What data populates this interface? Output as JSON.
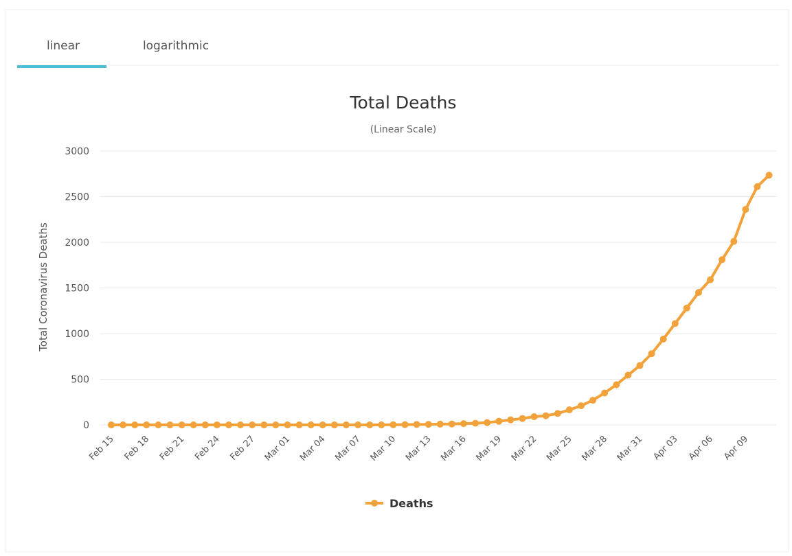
{
  "tabs": [
    "linear",
    "logarithmic"
  ],
  "chart_data": {
    "type": "line",
    "title": "Total Deaths",
    "subtitle": "(Linear Scale)",
    "y_label": "Total Coronavirus Deaths",
    "categories": [
      "Feb 15",
      null,
      null,
      "Feb 18",
      null,
      null,
      "Feb 21",
      null,
      null,
      "Feb 24",
      null,
      null,
      "Feb 27",
      null,
      null,
      "Mar 01",
      null,
      null,
      "Mar 04",
      null,
      null,
      "Mar 07",
      null,
      null,
      "Mar 10",
      null,
      null,
      "Mar 13",
      null,
      null,
      "Mar 16",
      null,
      null,
      "Mar 19",
      null,
      null,
      "Mar 22",
      null,
      null,
      "Mar 25",
      null,
      null,
      "Mar 28",
      null,
      null,
      "Mar 31",
      null,
      null,
      "Apr 03",
      null,
      null,
      "Apr 06",
      null,
      null,
      "Apr 09",
      null,
      null
    ],
    "series": [
      {
        "name": "Deaths",
        "color": "#f2a23a",
        "values": [
          0,
          0,
          0,
          0,
          0,
          0,
          0,
          0,
          0,
          0,
          0,
          0,
          0,
          0,
          0,
          0,
          0,
          0,
          0,
          0,
          0,
          0,
          0,
          0,
          2,
          3,
          5,
          6,
          8,
          10,
          14,
          18,
          25,
          40,
          55,
          70,
          90,
          100,
          125,
          165,
          210,
          270,
          350,
          440,
          545,
          650,
          780,
          940,
          1110,
          1280,
          1450,
          1590,
          1810,
          2010,
          2360,
          2610,
          2735
        ]
      }
    ],
    "ylim": [
      0,
      3000
    ],
    "yticks": [
      0,
      500,
      1000,
      1500,
      2000,
      2500,
      3000
    ],
    "grid": true
  }
}
